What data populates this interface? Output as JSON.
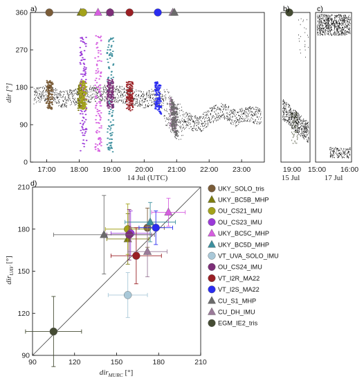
{
  "panel_labels": {
    "a": "a)",
    "b": "b)",
    "c": "c)",
    "d": "d)"
  },
  "instruments": [
    {
      "name": "UKY_SOLO_tris",
      "color": "#7a5c38",
      "marker": "circle"
    },
    {
      "name": "UKY_BC5B_MHP",
      "color": "#7d7d10",
      "marker": "triangle"
    },
    {
      "name": "OU_CS21_IMU",
      "color": "#a3a21a",
      "marker": "circle"
    },
    {
      "name": "OU_CS23_IMU",
      "color": "#9b3ad9",
      "marker": "circle"
    },
    {
      "name": "UKY_BC5C_MHP",
      "color": "#d65ee0",
      "marker": "triangle"
    },
    {
      "name": "UKY_BC5D_MHP",
      "color": "#3d8f9e",
      "marker": "triangle"
    },
    {
      "name": "VT_UVA_SOLO_IMU",
      "color": "#a9c8d8",
      "marker": "circle"
    },
    {
      "name": "OU_CS24_IMU",
      "color": "#7d2f78",
      "marker": "circle"
    },
    {
      "name": "VT_I2R_MA22",
      "color": "#9a1f24",
      "marker": "circle"
    },
    {
      "name": "VT_I2S_MA22",
      "color": "#2a2cf0",
      "marker": "circle"
    },
    {
      "name": "CU_S1_MHP",
      "color": "#6b6b6b",
      "marker": "triangle"
    },
    {
      "name": "CU_DH_IMU",
      "color": "#9a7a99",
      "marker": "triangle"
    },
    {
      "name": "EGM_IE2_tris",
      "color": "#454c33",
      "marker": "circle"
    }
  ],
  "chart_data": [
    {
      "panel": "a",
      "type": "scatter",
      "xlabel": "14 Jul (UTC)",
      "ylabel": "dir [°]",
      "xlim_hours": [
        16.5,
        23.7
      ],
      "ylim": [
        0,
        360
      ],
      "xticks": [
        "17:00",
        "18:00",
        "19:00",
        "20:00",
        "21:00",
        "22:00",
        "23:00"
      ],
      "xtick_hours": [
        17,
        18,
        19,
        20,
        21,
        22,
        23
      ],
      "yticks": [
        0,
        90,
        180,
        270,
        360
      ],
      "reference_series_color": "#000000",
      "reference_profile": [
        {
          "hour": 16.6,
          "dir": 160
        },
        {
          "hour": 17.0,
          "dir": 165
        },
        {
          "hour": 17.5,
          "dir": 150
        },
        {
          "hour": 18.0,
          "dir": 160
        },
        {
          "hour": 18.5,
          "dir": 165
        },
        {
          "hour": 19.0,
          "dir": 165
        },
        {
          "hour": 19.5,
          "dir": 160
        },
        {
          "hour": 20.0,
          "dir": 150
        },
        {
          "hour": 20.4,
          "dir": 160
        },
        {
          "hour": 20.8,
          "dir": 120
        },
        {
          "hour": 21.0,
          "dir": 95
        },
        {
          "hour": 21.3,
          "dir": 100
        },
        {
          "hour": 21.7,
          "dir": 90
        },
        {
          "hour": 22.0,
          "dir": 110
        },
        {
          "hour": 22.4,
          "dir": 125
        },
        {
          "hour": 22.8,
          "dir": 105
        },
        {
          "hour": 23.2,
          "dir": 115
        },
        {
          "hour": 23.6,
          "dir": 110
        }
      ],
      "flight_markers": [
        {
          "instrument": 0,
          "hour": 17.08
        },
        {
          "instrument": 1,
          "hour": 18.05
        },
        {
          "instrument": 3,
          "hour": 18.12
        },
        {
          "instrument": 2,
          "hour": 18.12
        },
        {
          "instrument": 4,
          "hour": 18.58
        },
        {
          "instrument": 5,
          "hour": 18.95
        },
        {
          "instrument": 7,
          "hour": 18.95
        },
        {
          "instrument": 8,
          "hour": 19.55
        },
        {
          "instrument": 9,
          "hour": 20.42
        },
        {
          "instrument": 11,
          "hour": 20.88
        },
        {
          "instrument": 10,
          "hour": 20.93
        }
      ]
    },
    {
      "panel": "b",
      "type": "scatter",
      "xlabel": "15 Jul",
      "xticks": [
        "19:00"
      ],
      "ylim": [
        0,
        360
      ],
      "flight_markers": [
        {
          "instrument": 12,
          "hour": 19.1
        }
      ]
    },
    {
      "panel": "c",
      "type": "scatter",
      "xlabel": "17 Jul",
      "xticks": [
        "15:00",
        "16:00"
      ],
      "ylim": [
        0,
        360
      ]
    },
    {
      "panel": "d",
      "type": "scatter",
      "xlabel": "dir_MURC [°]",
      "ylabel": "dir_UAV [°]",
      "xlim": [
        90,
        210
      ],
      "ylim": [
        90,
        210
      ],
      "xticks": [
        90,
        120,
        150,
        180,
        210
      ],
      "yticks": [
        90,
        120,
        150,
        180,
        210
      ],
      "one_to_one_line": true,
      "points": [
        {
          "instrument": 0,
          "x": 172,
          "y": 181,
          "xerr": 12,
          "yerr": 14
        },
        {
          "instrument": 1,
          "x": 158,
          "y": 173,
          "xerr": 15,
          "yerr": 18
        },
        {
          "instrument": 2,
          "x": 158,
          "y": 180,
          "xerr": 16,
          "yerr": 18
        },
        {
          "instrument": 3,
          "x": 160,
          "y": 177,
          "xerr": 14,
          "yerr": 16
        },
        {
          "instrument": 4,
          "x": 187,
          "y": 192,
          "xerr": 12,
          "yerr": 10
        },
        {
          "instrument": 5,
          "x": 174,
          "y": 185,
          "xerr": 18,
          "yerr": 14
        },
        {
          "instrument": 6,
          "x": 158,
          "y": 133,
          "xerr": 14,
          "yerr": 16
        },
        {
          "instrument": 7,
          "x": 159,
          "y": 176,
          "xerr": 16,
          "yerr": 18
        },
        {
          "instrument": 8,
          "x": 164,
          "y": 161,
          "xerr": 18,
          "yerr": 20
        },
        {
          "instrument": 9,
          "x": 178,
          "y": 181,
          "xerr": 12,
          "yerr": 12
        },
        {
          "instrument": 10,
          "x": 141,
          "y": 176,
          "xerr": 36,
          "yerr": 28
        },
        {
          "instrument": 11,
          "x": 172,
          "y": 164,
          "xerr": 14,
          "yerr": 18
        },
        {
          "instrument": 12,
          "x": 105,
          "y": 107,
          "xerr": 20,
          "yerr": 25
        }
      ]
    }
  ]
}
